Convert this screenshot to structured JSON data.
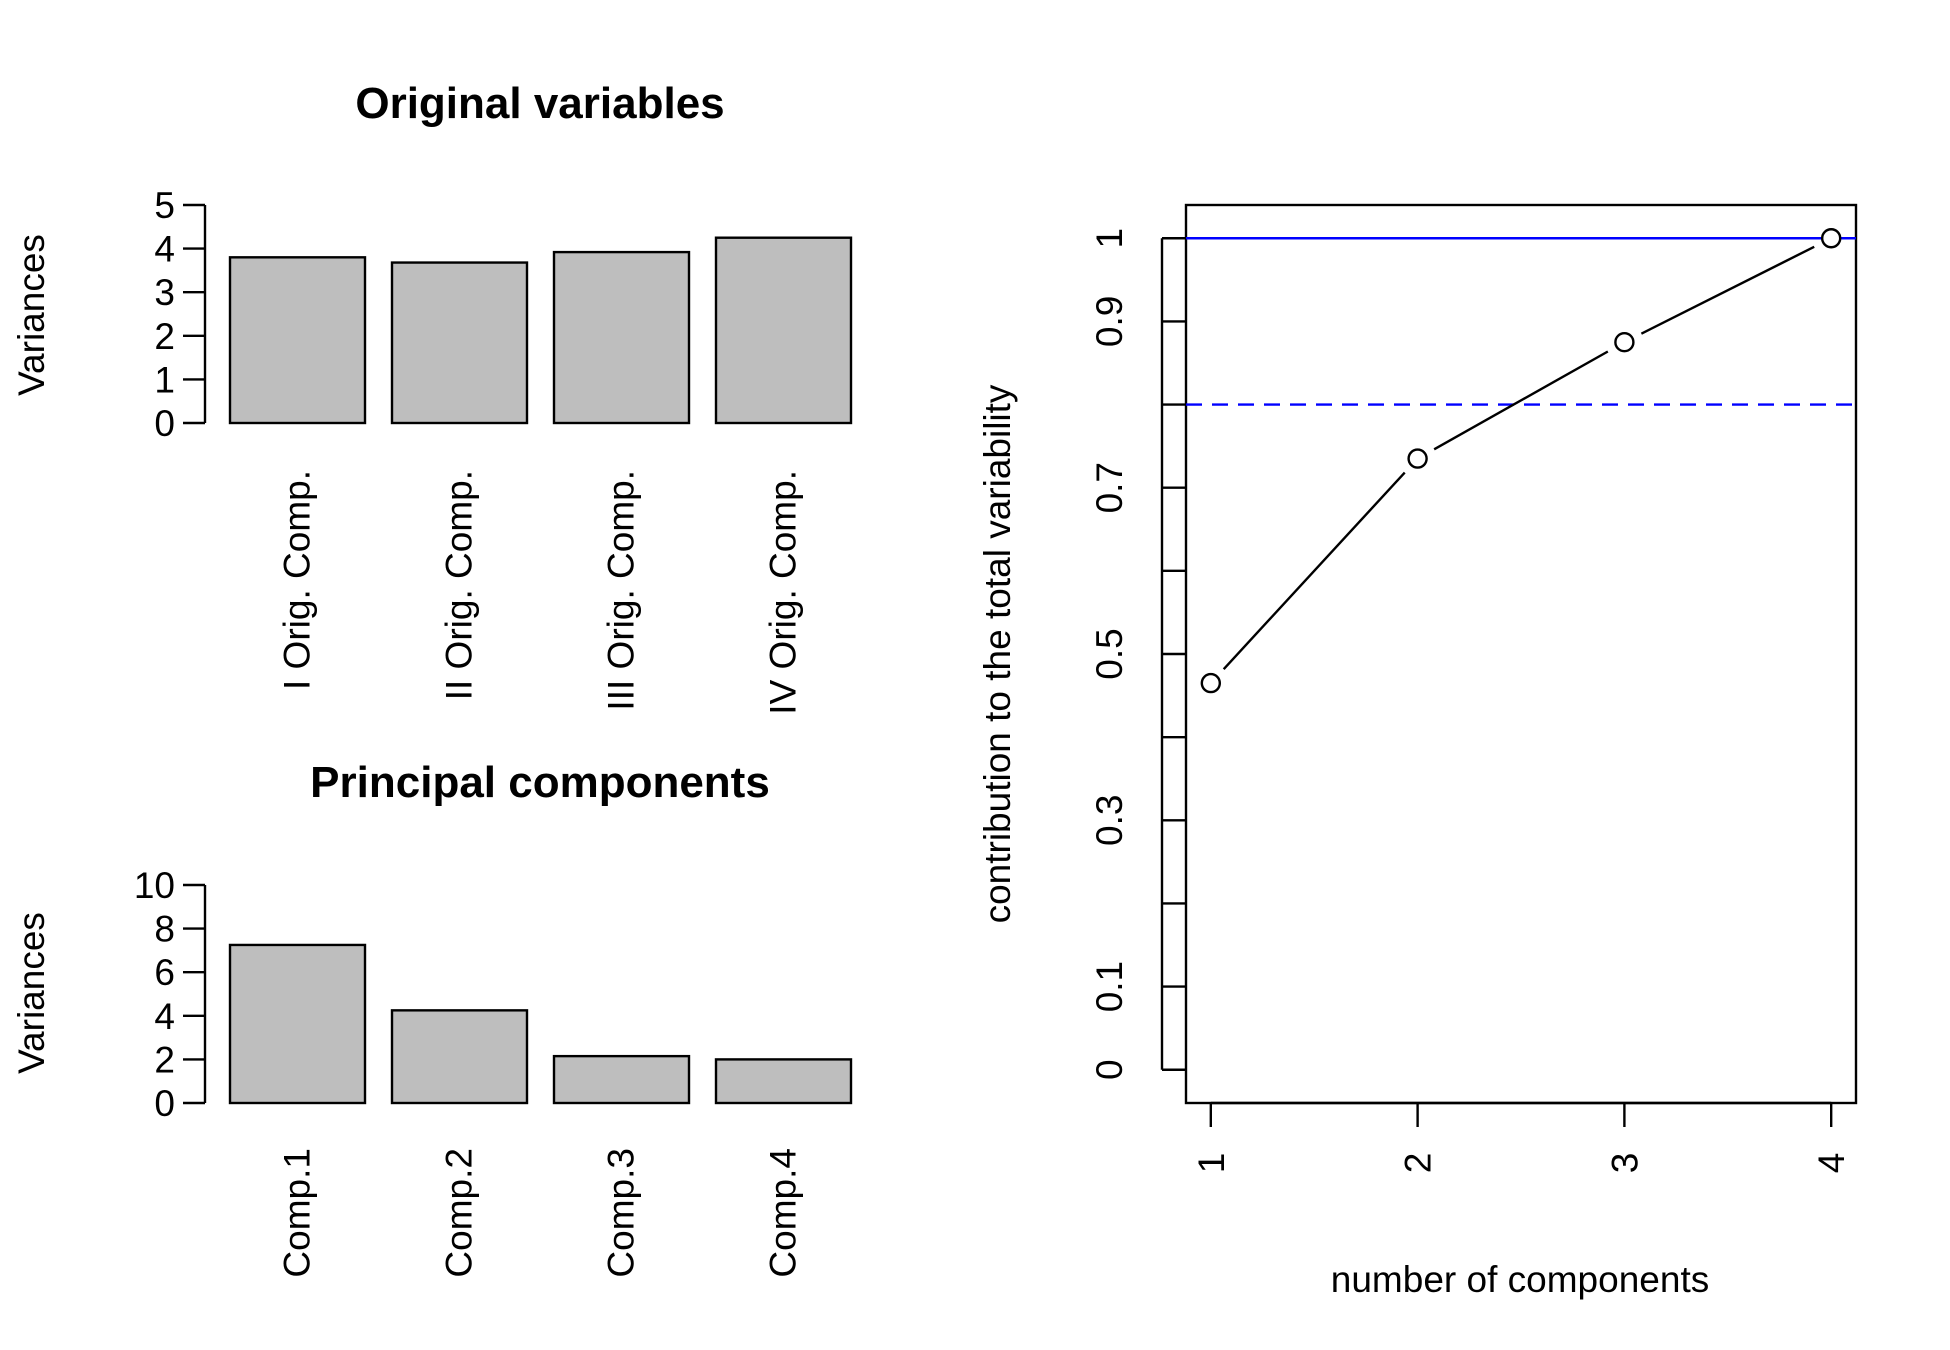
{
  "chart_data": [
    {
      "type": "bar",
      "title": "Original variables",
      "ylabel": "Variances",
      "xlabel": "",
      "categories": [
        "I Orig. Comp.",
        "II Orig. Comp.",
        "III Orig. Comp.",
        "IV Orig. Comp."
      ],
      "values": [
        3.8,
        3.68,
        3.92,
        4.25
      ],
      "ylim": [
        0,
        5
      ],
      "yticks": [
        0,
        1,
        2,
        3,
        4,
        5
      ],
      "ytick_labels": [
        "0",
        "1",
        "2",
        "3",
        "4",
        "5"
      ],
      "bar_color": "#bebebe",
      "grid": false
    },
    {
      "type": "bar",
      "title": "Principal components",
      "ylabel": "Variances",
      "xlabel": "",
      "categories": [
        "Comp.1",
        "Comp.2",
        "Comp.3",
        "Comp.4"
      ],
      "values": [
        7.25,
        4.25,
        2.15,
        2.0
      ],
      "ylim": [
        0,
        10
      ],
      "yticks": [
        0,
        2,
        4,
        6,
        8,
        10
      ],
      "ytick_labels": [
        "0",
        "2",
        "4",
        "6",
        "8",
        "10"
      ],
      "bar_color": "#bebebe",
      "grid": false
    },
    {
      "type": "line",
      "title": "",
      "xlabel": "number of components",
      "ylabel": "contribution to the total variability",
      "x": [
        1,
        2,
        3,
        4
      ],
      "y": [
        0.465,
        0.735,
        0.875,
        1.0
      ],
      "xlim": [
        0.88,
        4.12
      ],
      "ylim": [
        -0.04,
        1.04
      ],
      "xticks": [
        1,
        2,
        3,
        4
      ],
      "xtick_labels": [
        "1",
        "2",
        "3",
        "4"
      ],
      "yticks": [
        0,
        0.1,
        0.2,
        0.3,
        0.4,
        0.5,
        0.6,
        0.7,
        0.8,
        0.9,
        1
      ],
      "ytick_labels": [
        "0",
        "0.1",
        "",
        "0.3",
        "",
        "0.5",
        "",
        "0.7",
        "",
        "0.9",
        "1"
      ],
      "reference_lines": [
        {
          "y": 1.0,
          "style": "solid",
          "color": "#0000ff"
        },
        {
          "y": 0.8,
          "style": "dashed",
          "color": "#0000ff"
        }
      ],
      "marker": "open-circle",
      "line_color": "#000000",
      "grid": false
    }
  ]
}
